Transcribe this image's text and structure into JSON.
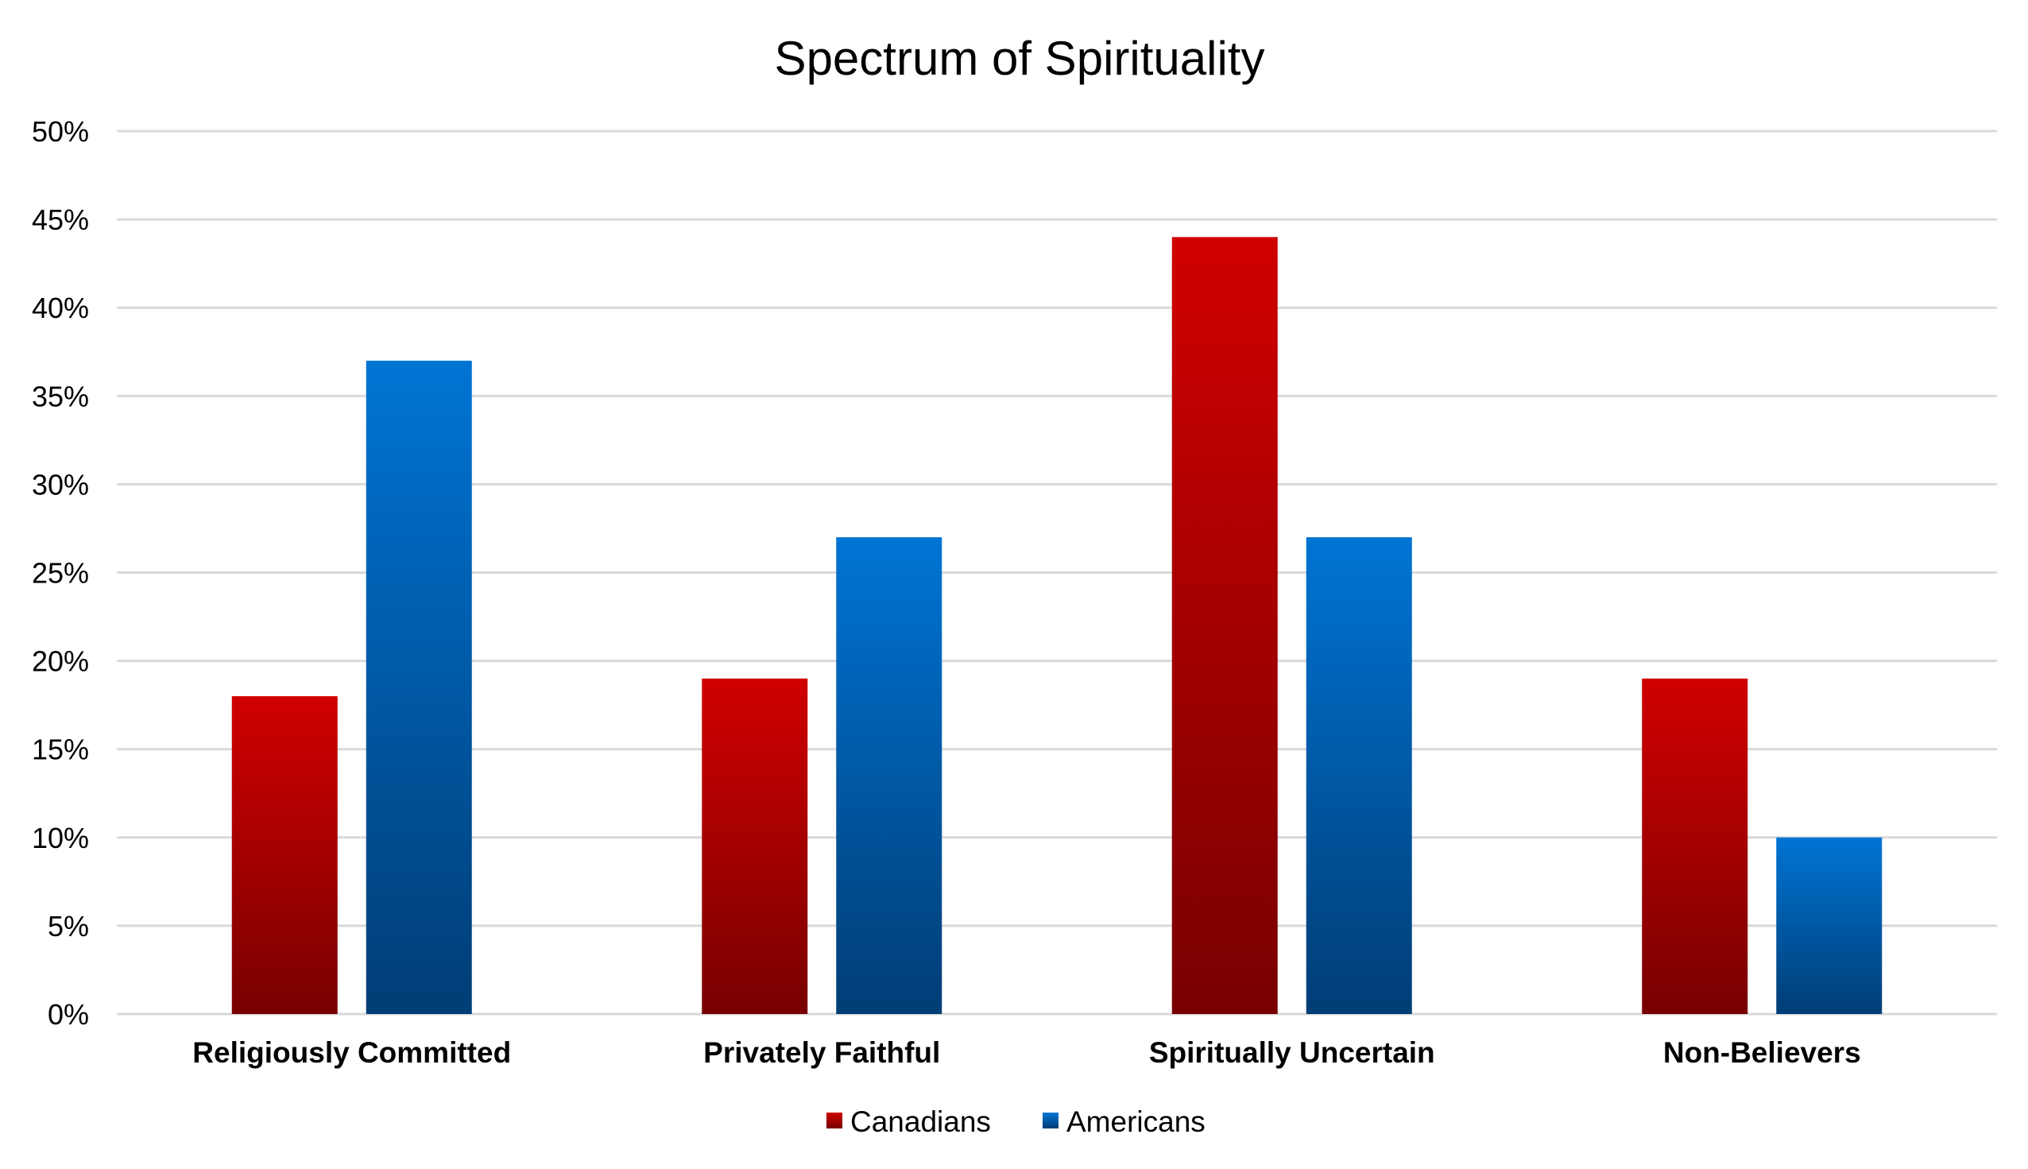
{
  "chart_data": {
    "type": "bar",
    "title": "Spectrum of Spirituality",
    "xlabel": "",
    "ylabel": "",
    "categories": [
      "Religiously Committed",
      "Privately Faithful",
      "Spiritually Uncertain",
      "Non-Believers"
    ],
    "series": [
      {
        "name": "Canadians",
        "values": [
          18,
          19,
          44,
          19
        ],
        "color_top": "#d00000",
        "color_bottom": "#780000"
      },
      {
        "name": "Americans",
        "values": [
          37,
          27,
          27,
          10
        ],
        "color_top": "#0074d4",
        "color_bottom": "#003d75"
      }
    ],
    "ylim": [
      0,
      50
    ],
    "yticks": [
      0,
      5,
      10,
      15,
      20,
      25,
      30,
      35,
      40,
      45,
      50
    ],
    "ytick_labels": [
      "0%",
      "5%",
      "10%",
      "15%",
      "20%",
      "25%",
      "30%",
      "35%",
      "40%",
      "45%",
      "50%"
    ],
    "grid": true,
    "legend_position": "bottom"
  }
}
